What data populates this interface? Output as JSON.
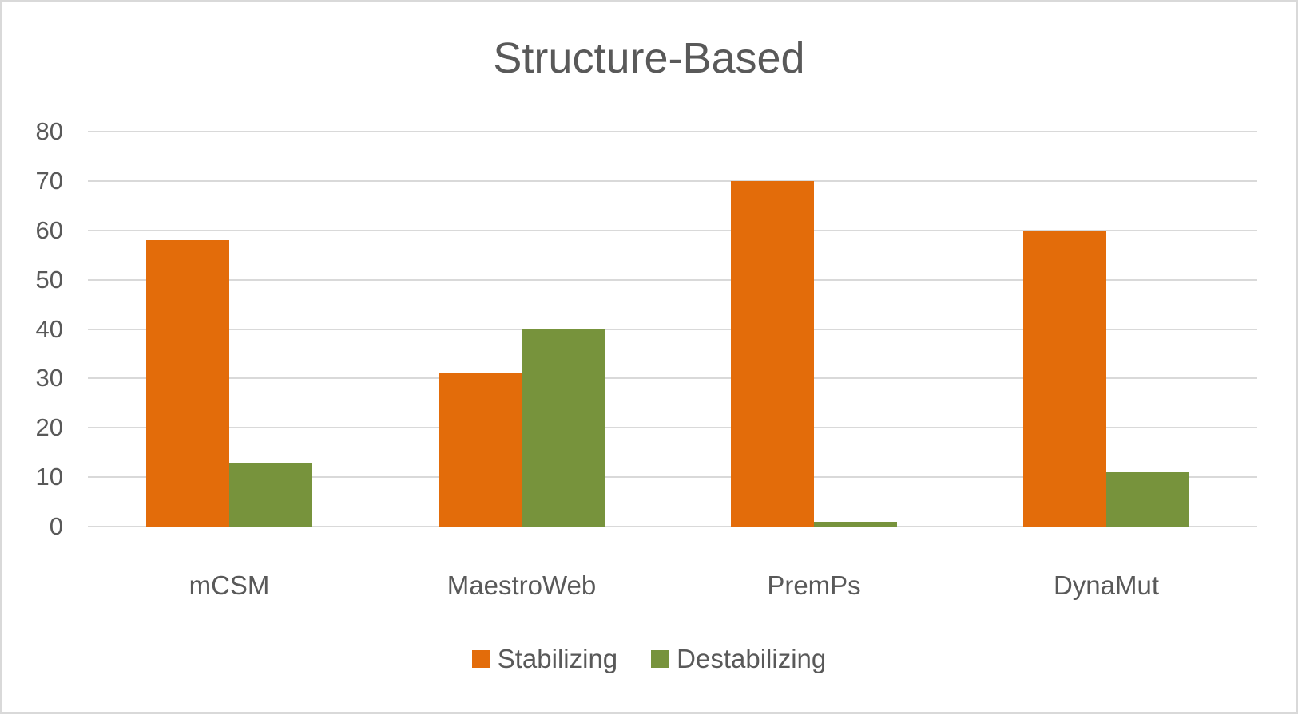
{
  "chart_data": {
    "type": "bar",
    "title": "Structure-Based",
    "xlabel": "",
    "ylabel": "",
    "categories": [
      "mCSM",
      "MaestroWeb",
      "PremPs",
      "DynaMut"
    ],
    "series": [
      {
        "name": "Stabilizing",
        "color": "#E36C0A",
        "values": [
          58,
          31,
          70,
          60
        ]
      },
      {
        "name": "Destabilizing",
        "color": "#77933C",
        "values": [
          13,
          40,
          1,
          11
        ]
      }
    ],
    "ylim": [
      0,
      80
    ],
    "yticks": [
      0,
      10,
      20,
      30,
      40,
      50,
      60,
      70,
      80
    ],
    "grid": true,
    "legend_position": "bottom"
  }
}
